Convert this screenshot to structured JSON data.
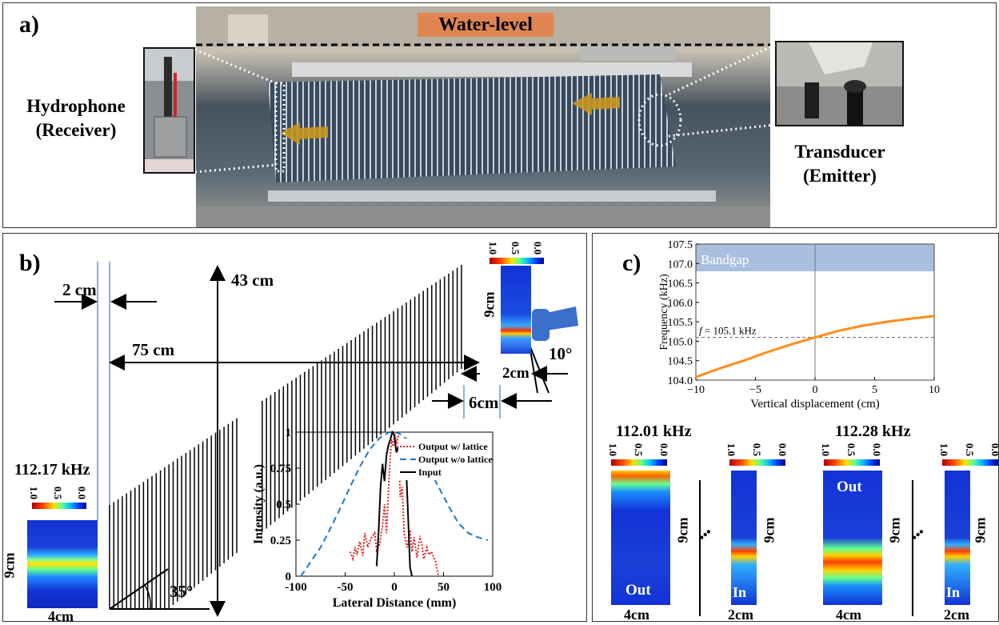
{
  "panel_a": {
    "label": "a)",
    "water_level": "Water-level",
    "receiver_line1": "Hydrophone",
    "receiver_line2": "(Receiver)",
    "emitter_line1": "Transducer",
    "emitter_line2": "(Emitter)"
  },
  "panel_b": {
    "label": "b)",
    "dim_2cm": "2 cm",
    "dim_43cm": "43 cm",
    "dim_75cm": "75 cm",
    "dim_2cm_b": "2cm",
    "dim_6cm": "6cm",
    "angle_10": "10°",
    "angle_35": "35°",
    "freq_left": "112.17 kHz",
    "left_map_h": "9cm",
    "left_map_w": "4cm",
    "right_map_h": "9cm",
    "colorbar_ticks": [
      "1.0",
      "0.5",
      "0.0"
    ]
  },
  "panel_c": {
    "label": "c)",
    "freq_a": "112.01 kHz",
    "freq_b": "112.28 kHz",
    "out_label": "Out",
    "in_label": "In",
    "dim_9cm": "9cm",
    "dim_4cm": "4cm",
    "dim_2cm": "2cm",
    "ellipsis": "•••",
    "colorbar_ticks": [
      "1.0",
      "0.5",
      "0.0"
    ]
  },
  "chart_data": [
    {
      "type": "line",
      "title": "",
      "xlabel": "Lateral Distance (mm)",
      "ylabel": "Intensity (a.u.)",
      "xlim": [
        -100,
        100
      ],
      "ylim": [
        0,
        1
      ],
      "xticks": [
        "-100",
        "-50",
        "0",
        "50",
        "100"
      ],
      "yticks": [
        "0",
        "0.25",
        "0.5",
        "0.75",
        "1"
      ],
      "legend_position": "top-right",
      "series": [
        {
          "name": "Output w/ lattice",
          "color": "#e02020",
          "style": "dotted",
          "x": [
            -45,
            -42,
            -40,
            -38,
            -35,
            -32,
            -30,
            -27,
            -24,
            -20,
            -18,
            -15,
            -12,
            -10,
            -8,
            -5,
            -3,
            -1,
            0,
            2,
            4,
            6,
            8,
            10,
            13,
            16,
            18,
            20,
            23,
            26,
            28,
            30,
            33,
            35,
            38,
            40,
            42,
            45
          ],
          "y": [
            0.17,
            0.12,
            0.2,
            0.15,
            0.24,
            0.14,
            0.3,
            0.2,
            0.26,
            0.3,
            0.18,
            0.22,
            0.35,
            0.5,
            0.3,
            0.72,
            0.95,
            0.9,
            1.0,
            0.92,
            0.98,
            0.55,
            0.62,
            0.3,
            0.2,
            0.32,
            0.17,
            0.27,
            0.13,
            0.28,
            0.22,
            0.12,
            0.2,
            0.15,
            0.17,
            0.13,
            0.1,
            0.0
          ]
        },
        {
          "name": "Output w/o lattice",
          "color": "#1f78c8",
          "style": "dashed",
          "x": [
            -95,
            -85,
            -75,
            -65,
            -55,
            -45,
            -35,
            -25,
            -15,
            -5,
            0,
            5,
            15,
            25,
            35,
            45,
            55,
            65,
            75,
            85,
            95
          ],
          "y": [
            0.0,
            0.1,
            0.2,
            0.33,
            0.47,
            0.62,
            0.76,
            0.88,
            0.96,
            1.0,
            1.0,
            0.99,
            0.94,
            0.86,
            0.75,
            0.62,
            0.49,
            0.37,
            0.3,
            0.27,
            0.25
          ]
        },
        {
          "name": "Input",
          "color": "#000000",
          "style": "solid",
          "x": [
            -18,
            -16,
            -14,
            -12,
            -10,
            -8,
            -6,
            -4,
            -2,
            0,
            2,
            4,
            6,
            8,
            10,
            12,
            14,
            16,
            18
          ],
          "y": [
            0.07,
            0.3,
            0.62,
            0.78,
            0.66,
            0.84,
            0.91,
            0.95,
            1.0,
            0.98,
            0.86,
            0.9,
            0.8,
            0.85,
            0.72,
            0.75,
            0.42,
            0.06,
            0.0
          ]
        }
      ]
    },
    {
      "type": "line",
      "title": "",
      "xlabel": "Vertical displacement (cm)",
      "ylabel": "Frequency (kHz)",
      "xlim": [
        -10,
        10
      ],
      "ylim": [
        104.0,
        107.5
      ],
      "xticks": [
        "−10",
        "−5",
        "0",
        "5",
        "10"
      ],
      "yticks": [
        "104.0",
        "104.5",
        "105.0",
        "105.5",
        "106.0",
        "106.5",
        "107.0",
        "107.5"
      ],
      "bandgap_label": "Bandgap",
      "bandgap_range": [
        106.8,
        107.5
      ],
      "annotation_f": "f",
      "annotation": "= 105.1 kHz",
      "annotation_value": 105.1,
      "series": [
        {
          "color": "#ff8c1a",
          "x": [
            -10,
            -8,
            -6,
            -4,
            -2,
            0,
            2,
            4,
            6,
            8,
            10
          ],
          "y": [
            104.08,
            104.3,
            104.5,
            104.72,
            104.92,
            105.1,
            105.27,
            105.4,
            105.5,
            105.58,
            105.65
          ]
        }
      ]
    }
  ]
}
